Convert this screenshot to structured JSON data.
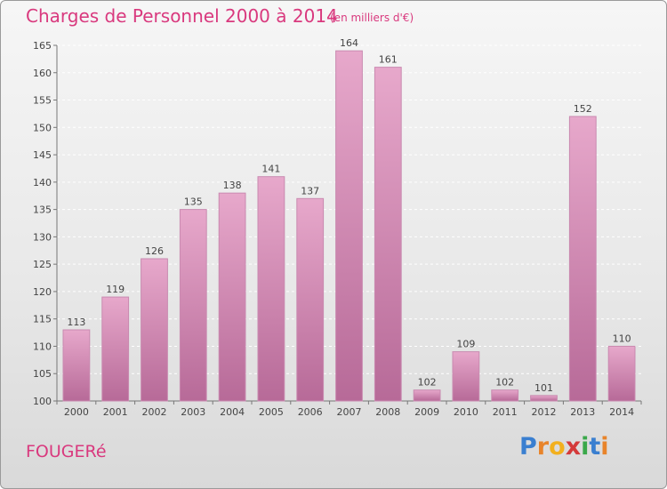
{
  "header": {
    "title": "Charges de Personnel 2000 à 2014",
    "subtitle": "(en milliers d'€)"
  },
  "footer": {
    "commune": "FOUGERé",
    "logo_letters": [
      "P",
      "r",
      "o",
      "x",
      "i",
      "t",
      "i"
    ],
    "logo_colors": [
      "#3a7fd0",
      "#e8842a",
      "#f2b01e",
      "#d43a3a",
      "#3aa84a",
      "#3a7fd0",
      "#e8842a"
    ]
  },
  "colors": {
    "accent": "#d9397e",
    "bar_top": "#e7a8cb",
    "bar_bottom": "#b76a98"
  },
  "chart_data": {
    "type": "bar",
    "title": "Charges de Personnel 2000 à 2014",
    "subtitle": "(en milliers d'€)",
    "xlabel": "",
    "ylabel": "",
    "categories": [
      "2000",
      "2001",
      "2002",
      "2003",
      "2004",
      "2005",
      "2006",
      "2007",
      "2008",
      "2009",
      "2010",
      "2011",
      "2012",
      "2013",
      "2014"
    ],
    "values": [
      113,
      119,
      126,
      135,
      138,
      141,
      137,
      164,
      161,
      102,
      109,
      102,
      101,
      152,
      110
    ],
    "ylim": [
      100,
      165
    ],
    "yticks": [
      100,
      105,
      110,
      115,
      120,
      125,
      130,
      135,
      140,
      145,
      150,
      155,
      160,
      165
    ],
    "grid": true
  }
}
